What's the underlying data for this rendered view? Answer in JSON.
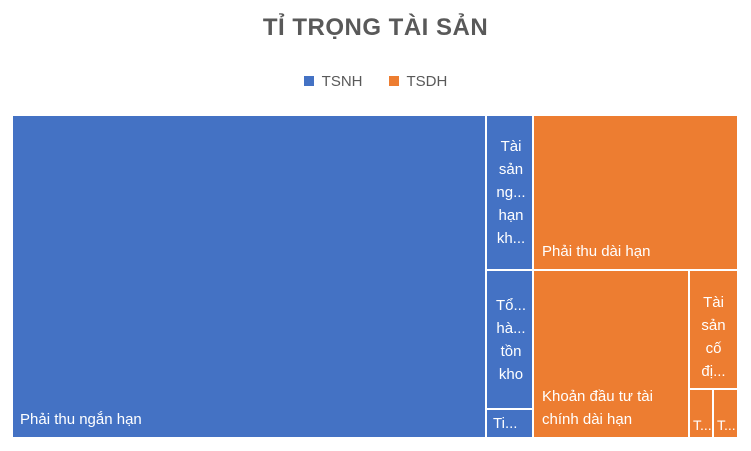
{
  "chart_data": {
    "type": "treemap",
    "title": "TỈ TRỌNG TÀI SẢN",
    "legend": [
      {
        "name": "TSNH",
        "color": "#4472C4"
      },
      {
        "name": "TSDH",
        "color": "#ED7D31"
      }
    ],
    "labels": {
      "phai_thu_ngan_han": "Phải thu ngắn hạn",
      "ts_ngan_han_khac": "Tài sản ng... hạn kh...",
      "hang_ton_kho": "Tổ... hà... tồn kho",
      "ti": "Ti...",
      "phai_thu_dai_han": "Phải thu dài hạn",
      "dau_tu_tai_chinh_dai_han": "Khoản đầu tư tài chính dài hạn",
      "tai_san_co_dinh": "Tài sản cố đị...",
      "t1": "T...",
      "t2": "T..."
    }
  }
}
